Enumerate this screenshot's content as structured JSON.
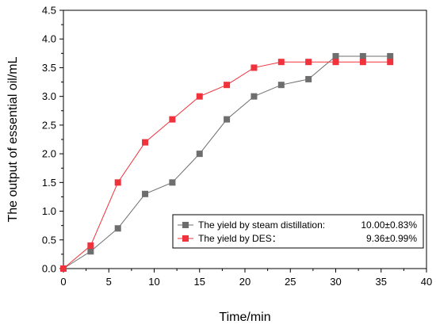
{
  "chart_data": {
    "type": "line",
    "title": "",
    "xlabel": "Time/min",
    "ylabel": "The output of essential oil/mL",
    "xlim": [
      0,
      40
    ],
    "ylim": [
      0,
      4.5
    ],
    "xticks": [
      0,
      5,
      10,
      15,
      20,
      25,
      30,
      35,
      40
    ],
    "yticks": [
      0.0,
      0.5,
      1.0,
      1.5,
      2.0,
      2.5,
      3.0,
      3.5,
      4.0,
      4.5
    ],
    "xtick_labels": [
      "0",
      "5",
      "10",
      "15",
      "20",
      "25",
      "30",
      "35",
      "40"
    ],
    "ytick_labels": [
      "0.0",
      "0.5",
      "1.0",
      "1.5",
      "2.0",
      "2.5",
      "3.0",
      "3.5",
      "4.0",
      "4.5"
    ],
    "grid": false,
    "legend_position": "bottom-right",
    "series": [
      {
        "name": "The yield by steam distillation:",
        "value_text": "10.00±0.83%",
        "color": "#6e6e6e",
        "marker": "square",
        "x": [
          0,
          3,
          6,
          9,
          12,
          15,
          18,
          21,
          24,
          27,
          30,
          33,
          36
        ],
        "y": [
          0,
          0.3,
          0.7,
          1.3,
          1.5,
          2.0,
          2.6,
          3.0,
          3.2,
          3.3,
          3.7,
          3.7,
          3.7
        ]
      },
      {
        "name": "The yield by DES：",
        "value_text": "9.36±0.99%",
        "color": "#f0323c",
        "marker": "square",
        "x": [
          0,
          3,
          6,
          9,
          12,
          15,
          18,
          21,
          24,
          27,
          30,
          33,
          36
        ],
        "y": [
          0,
          0.4,
          1.5,
          2.2,
          2.6,
          3.0,
          3.2,
          3.5,
          3.6,
          3.6,
          3.6,
          3.6,
          3.6
        ]
      }
    ]
  }
}
